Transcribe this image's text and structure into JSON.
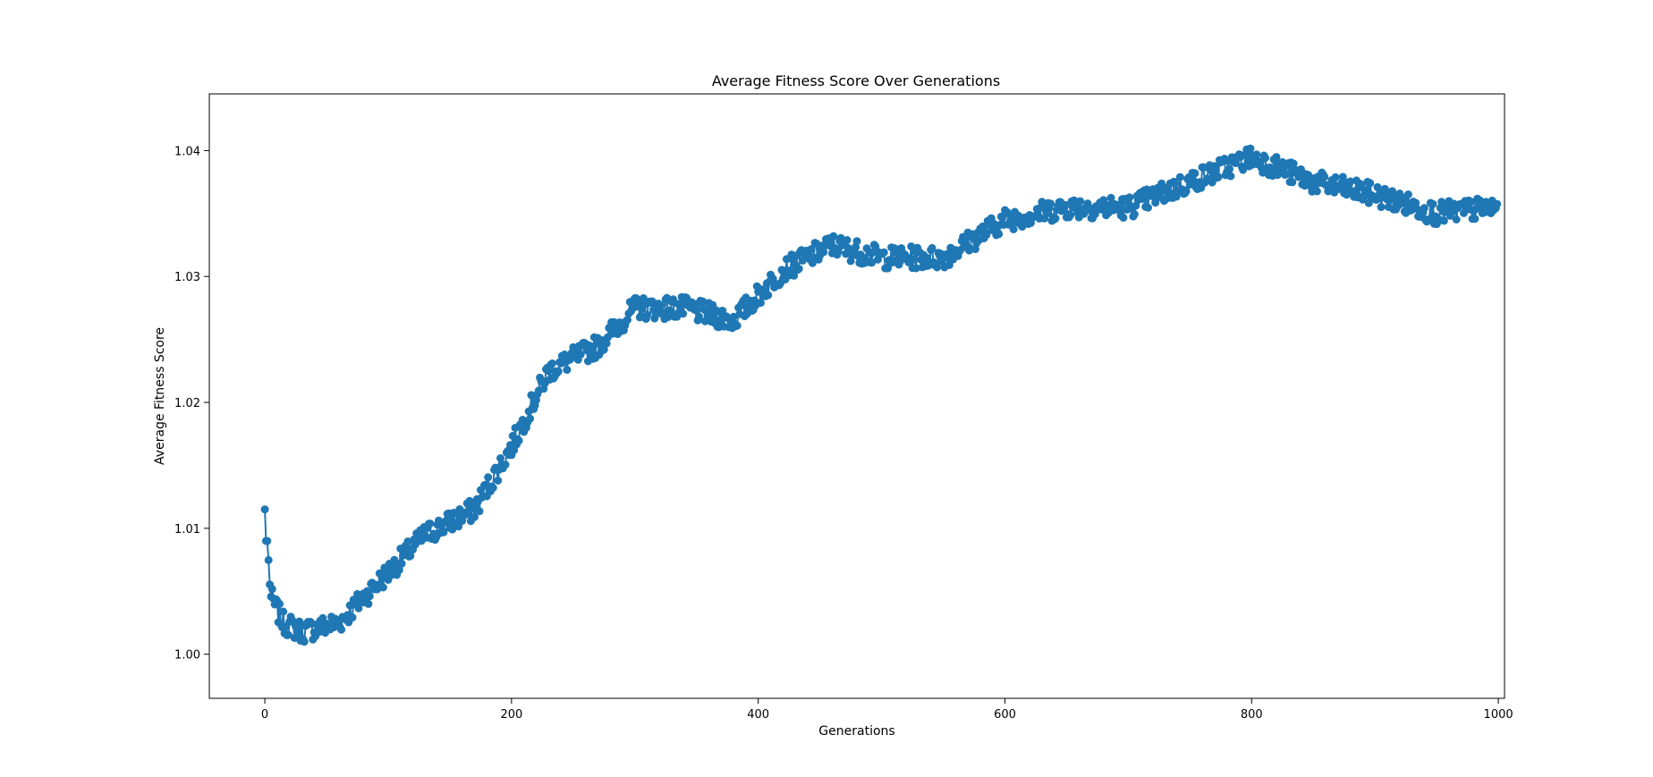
{
  "chart_data": {
    "type": "line",
    "title": "Average Fitness Score Over Generations",
    "xlabel": "Generations",
    "ylabel": "Average Fitness Score",
    "xlim": [
      -45,
      1005
    ],
    "ylim": [
      0.9965,
      1.0445
    ],
    "xticks": [
      0,
      200,
      400,
      600,
      800,
      1000
    ],
    "xtick_labels": [
      "0",
      "200",
      "400",
      "600",
      "800",
      "1000"
    ],
    "yticks": [
      1.0,
      1.01,
      1.02,
      1.03,
      1.04
    ],
    "ytick_labels": [
      "1.00",
      "1.01",
      "1.02",
      "1.03",
      "1.04"
    ],
    "grid": false,
    "legend": "none",
    "x_range": [
      0,
      999
    ],
    "approximate_trend": {
      "x": [
        0,
        5,
        15,
        30,
        60,
        90,
        130,
        170,
        200,
        230,
        270,
        300,
        340,
        380,
        420,
        460,
        500,
        550,
        600,
        650,
        700,
        750,
        800,
        850,
        900,
        950,
        999
      ],
      "y": [
        1.0115,
        1.0045,
        1.0025,
        1.0018,
        1.0025,
        1.0055,
        1.0095,
        1.0115,
        1.0165,
        1.0225,
        1.0245,
        1.0275,
        1.0275,
        1.0265,
        1.0305,
        1.0325,
        1.0315,
        1.0315,
        1.0345,
        1.0355,
        1.0355,
        1.0375,
        1.0395,
        1.0375,
        1.0365,
        1.035,
        1.0355
      ]
    },
    "series": [
      {
        "color": "#1f77b4",
        "marker": "circle",
        "point_count": 1000,
        "noise_amplitude": 0.0009,
        "seed": 7
      }
    ]
  }
}
